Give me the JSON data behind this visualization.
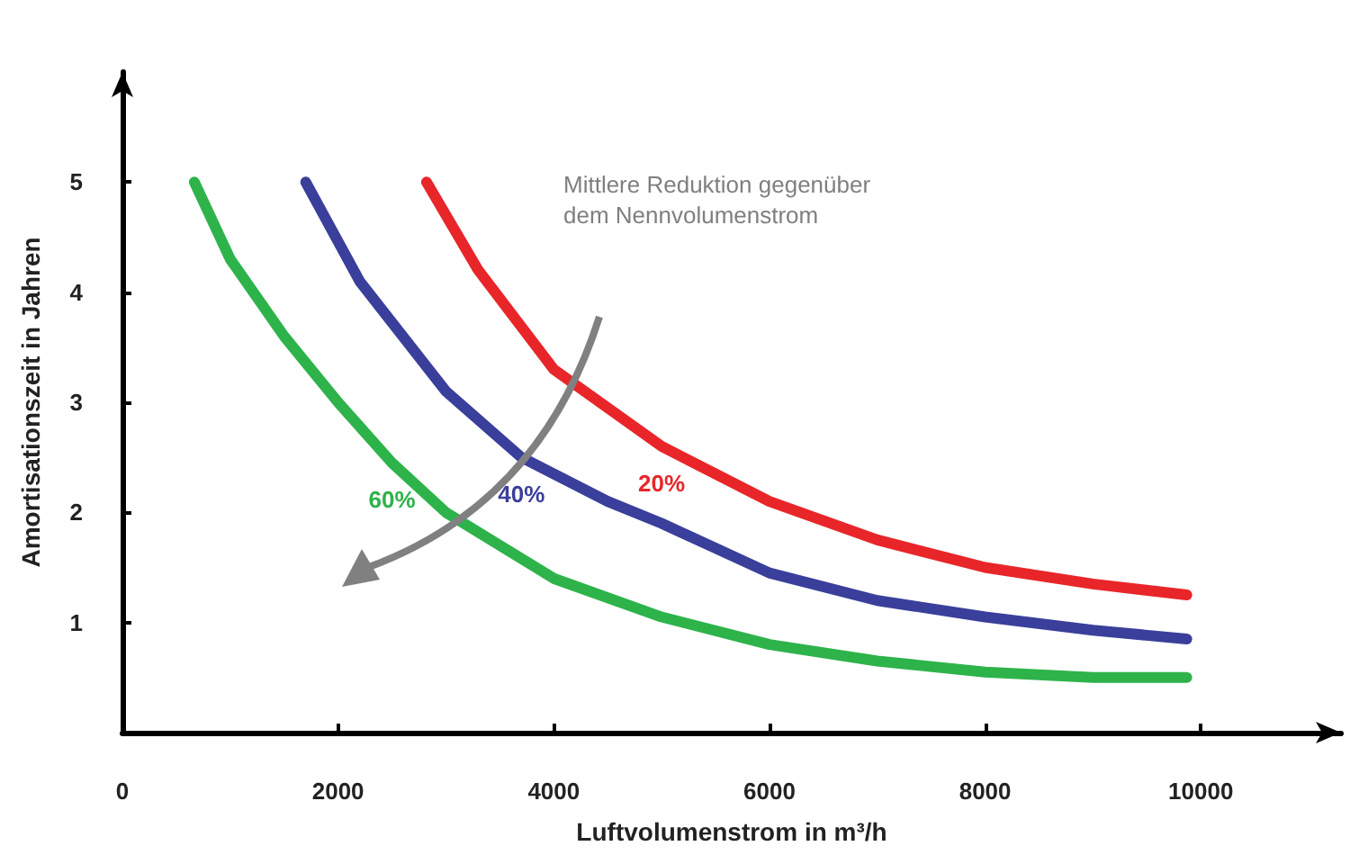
{
  "chart_data": {
    "type": "line",
    "xlabel": "Luftvolumenstrom in m³/h",
    "ylabel": "Amortisationszeit in Jahren",
    "xlim": [
      0,
      11300
    ],
    "ylim": [
      0,
      6
    ],
    "xticks": [
      0,
      2000,
      4000,
      6000,
      8000,
      10000
    ],
    "yticks": [
      1,
      2,
      3,
      4,
      5
    ],
    "grid": false,
    "legend": false,
    "marker": "none",
    "annotations": [
      "Mittlere Reduktion gegenüber dem Nennvolumenstrom"
    ],
    "series": [
      {
        "name": "20%",
        "color": "#e8262a",
        "x": [
          2820,
          3300,
          4000,
          5000,
          6000,
          7000,
          8000,
          9000,
          9870
        ],
        "values": [
          5,
          4.2,
          3.3,
          2.6,
          2.1,
          1.75,
          1.5,
          1.35,
          1.25
        ]
      },
      {
        "name": "40%",
        "color": "#3a3f9b",
        "x": [
          1700,
          2200,
          3000,
          3700,
          4500,
          5000,
          6000,
          7000,
          8000,
          9000,
          9870
        ],
        "values": [
          5,
          4.1,
          3.1,
          2.5,
          2.1,
          1.9,
          1.45,
          1.2,
          1.05,
          0.93,
          0.85
        ]
      },
      {
        "name": "60%",
        "color": "#2db34a",
        "x": [
          667,
          1000,
          1500,
          2000,
          2500,
          3000,
          4000,
          5000,
          6000,
          7000,
          8000,
          9000,
          9870
        ],
        "values": [
          5,
          4.3,
          3.6,
          3.0,
          2.45,
          2.0,
          1.4,
          1.05,
          0.8,
          0.65,
          0.55,
          0.5,
          0.5
        ]
      }
    ]
  }
}
